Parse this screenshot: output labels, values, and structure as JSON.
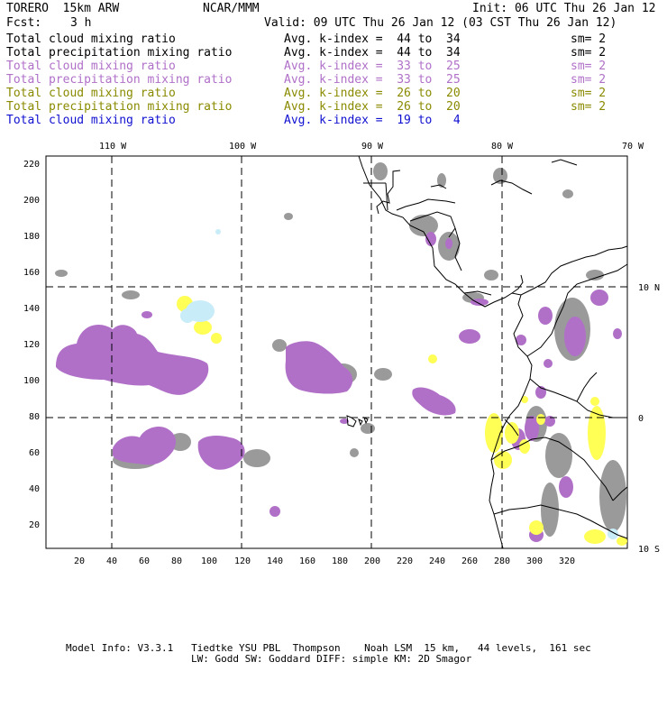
{
  "header": {
    "model": "TORERO  15km ARW",
    "org": "NCAR/MMM",
    "init": "Init: 06 UTC Thu 26 Jan 12",
    "fcst_label": "Fcst:",
    "fcst_value": "3 h",
    "valid": "Valid: 09 UTC Thu 26 Jan 12 (03 CST Thu 26 Jan 12)"
  },
  "legend": [
    {
      "field": "Total cloud mixing ratio",
      "index": "Avg. k-index =  44 to  34",
      "sm": "sm= 2",
      "color": "#000000"
    },
    {
      "field": "Total precipitation mixing ratio",
      "index": "Avg. k-index =  44 to  34",
      "sm": "sm= 2",
      "color": "#000000"
    },
    {
      "field": "Total cloud mixing ratio",
      "index": "Avg. k-index =  33 to  25",
      "sm": "sm= 2",
      "color": "#b070c8"
    },
    {
      "field": "Total precipitation mixing ratio",
      "index": "Avg. k-index =  33 to  25",
      "sm": "sm= 2",
      "color": "#b070c8"
    },
    {
      "field": "Total cloud mixing ratio",
      "index": "Avg. k-index =  26 to  20",
      "sm": "sm= 2",
      "color": "#8a8a00"
    },
    {
      "field": "Total precipitation mixing ratio",
      "index": "Avg. k-index =  26 to  20",
      "sm": "sm= 2",
      "color": "#8a8a00"
    },
    {
      "field": "Total cloud mixing ratio",
      "index": "Avg. k-index =  19 to   4",
      "sm": "",
      "color": "#1010d0"
    }
  ],
  "map": {
    "lon_labels": [
      "110 W",
      "100 W",
      "90 W",
      "80 W",
      "70 W"
    ],
    "lat_labels": [
      "10 N",
      "0",
      "10 S"
    ],
    "y_ticks": [
      "220",
      "200",
      "180",
      "160",
      "140",
      "120",
      "100",
      "80",
      "60",
      "40",
      "20"
    ],
    "x_ticks": [
      "20",
      "40",
      "60",
      "80",
      "100",
      "120",
      "140",
      "160",
      "180",
      "200",
      "220",
      "240",
      "260",
      "280",
      "300",
      "320"
    ],
    "colors": {
      "gray": "#9a9a9a",
      "purple": "#b070c8",
      "yellow": "#ffff55",
      "lightblue": "#c8ecf8"
    }
  },
  "footer": {
    "line1": "Model Info: V3.3.1   Tiedtke YSU PBL  Thompson    Noah LSM  15 km,   44 levels,  161 sec",
    "line2": "LW: Godd SW: Goddard DIFF: simple KM: 2D Smagor"
  }
}
